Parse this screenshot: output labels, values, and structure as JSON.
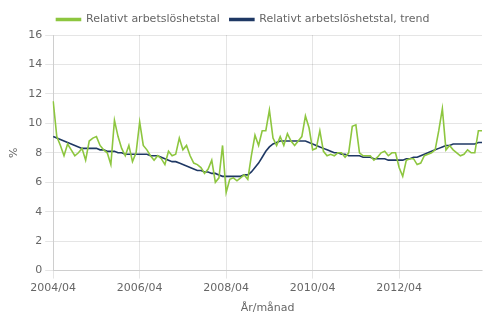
{
  "chart_data": {
    "type": "line",
    "xlabel": "År/månad",
    "ylabel": "%",
    "categories": [
      "2004/04",
      null,
      null,
      null,
      null,
      null,
      null,
      null,
      null,
      null,
      null,
      null,
      null,
      null,
      null,
      null,
      null,
      null,
      null,
      null,
      null,
      null,
      null,
      null,
      "2006/04",
      null,
      null,
      null,
      null,
      null,
      null,
      null,
      null,
      null,
      null,
      null,
      null,
      null,
      null,
      null,
      null,
      null,
      null,
      null,
      null,
      null,
      null,
      null,
      "2008/04",
      null,
      null,
      null,
      null,
      null,
      null,
      null,
      null,
      null,
      null,
      null,
      null,
      null,
      null,
      null,
      null,
      null,
      null,
      null,
      null,
      null,
      null,
      null,
      "2010/04",
      null,
      null,
      null,
      null,
      null,
      null,
      null,
      null,
      null,
      null,
      null,
      null,
      null,
      null,
      null,
      null,
      null,
      null,
      null,
      null,
      null,
      null,
      null,
      "2012/04",
      null,
      null,
      null,
      null,
      null,
      null,
      null,
      null,
      null,
      null,
      null,
      null,
      null,
      null,
      null,
      null,
      null,
      null,
      null,
      null,
      null,
      null,
      null
    ],
    "series": [
      {
        "name": "Relativt arbetslöshetstal",
        "color": "#8dc63f",
        "values": [
          11.5,
          9.1,
          8.5,
          7.8,
          8.6,
          8.2,
          7.8,
          8.0,
          8.3,
          7.5,
          8.8,
          9.0,
          9.1,
          8.5,
          8.2,
          8.0,
          7.2,
          10.2,
          9.1,
          8.3,
          7.8,
          8.5,
          7.4,
          8.0,
          10.1,
          8.5,
          8.2,
          7.8,
          7.5,
          7.8,
          7.6,
          7.2,
          8.1,
          7.8,
          7.9,
          9.0,
          8.2,
          8.5,
          7.8,
          7.3,
          7.2,
          7.0,
          6.6,
          6.9,
          7.5,
          6.0,
          6.3,
          8.5,
          5.3,
          6.2,
          6.3,
          6.1,
          6.3,
          6.5,
          6.2,
          7.8,
          9.2,
          8.5,
          9.5,
          9.5,
          10.9,
          9.0,
          8.5,
          9.1,
          8.5,
          9.3,
          8.8,
          8.5,
          8.8,
          9.1,
          10.5,
          9.7,
          8.2,
          8.3,
          9.5,
          8.1,
          7.8,
          7.9,
          7.8,
          8.0,
          8.0,
          7.7,
          8.0,
          9.8,
          9.9,
          8.0,
          7.8,
          7.8,
          7.8,
          7.5,
          7.7,
          8.0,
          8.1,
          7.8,
          8.0,
          8.0,
          7.0,
          6.4,
          7.5,
          7.6,
          7.6,
          7.2,
          7.3,
          7.8,
          7.9,
          8.0,
          8.2,
          9.5,
          11.0,
          8.2,
          8.5,
          8.2,
          8.0,
          7.8,
          7.9,
          8.2,
          8.0,
          8.0,
          9.5,
          9.5
        ]
      },
      {
        "name": "Relativt arbetslöshetstal, trend",
        "color": "#1f3864",
        "values": [
          9.1,
          9.0,
          8.9,
          8.8,
          8.7,
          8.6,
          8.5,
          8.4,
          8.3,
          8.3,
          8.3,
          8.3,
          8.3,
          8.2,
          8.2,
          8.1,
          8.1,
          8.1,
          8.0,
          8.0,
          7.9,
          7.9,
          7.9,
          7.9,
          7.9,
          7.9,
          7.9,
          7.8,
          7.8,
          7.8,
          7.7,
          7.6,
          7.5,
          7.4,
          7.4,
          7.3,
          7.2,
          7.1,
          7.0,
          6.9,
          6.8,
          6.8,
          6.7,
          6.7,
          6.6,
          6.6,
          6.5,
          6.4,
          6.4,
          6.4,
          6.4,
          6.4,
          6.4,
          6.5,
          6.5,
          6.7,
          7.0,
          7.3,
          7.7,
          8.1,
          8.4,
          8.6,
          8.7,
          8.8,
          8.8,
          8.8,
          8.8,
          8.8,
          8.8,
          8.8,
          8.8,
          8.7,
          8.6,
          8.5,
          8.4,
          8.3,
          8.2,
          8.1,
          8.0,
          8.0,
          7.9,
          7.9,
          7.8,
          7.8,
          7.8,
          7.8,
          7.7,
          7.7,
          7.7,
          7.6,
          7.6,
          7.6,
          7.6,
          7.5,
          7.5,
          7.5,
          7.5,
          7.5,
          7.6,
          7.6,
          7.7,
          7.7,
          7.8,
          7.9,
          8.0,
          8.1,
          8.2,
          8.3,
          8.4,
          8.5,
          8.5,
          8.6,
          8.6,
          8.6,
          8.6,
          8.6,
          8.6,
          8.6,
          8.7,
          8.7
        ]
      }
    ],
    "ylim": [
      0,
      16
    ],
    "yticks": [
      0,
      2,
      4,
      6,
      8,
      10,
      12,
      14,
      16
    ],
    "grid": true,
    "legend": "top"
  }
}
